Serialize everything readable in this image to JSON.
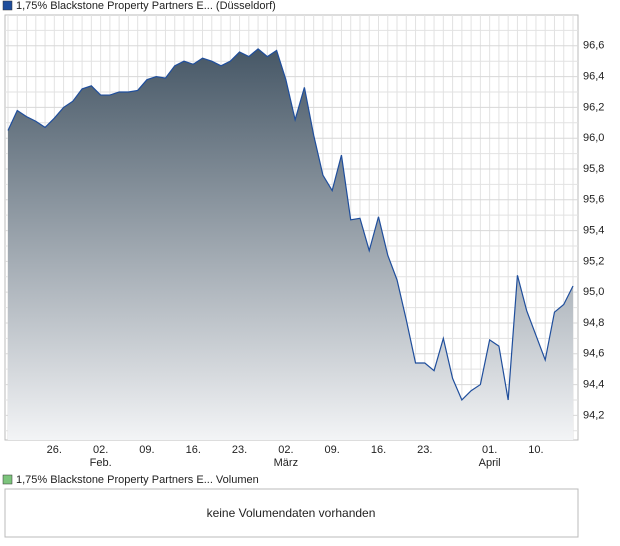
{
  "chart_data": {
    "type": "area",
    "categories": [
      null,
      null,
      null,
      null,
      null,
      "26.",
      null,
      null,
      null,
      null,
      "02.",
      null,
      null,
      null,
      null,
      "09.",
      null,
      null,
      null,
      null,
      "16.",
      null,
      null,
      null,
      null,
      "23.",
      null,
      null,
      null,
      null,
      "02.",
      null,
      null,
      null,
      null,
      "09.",
      null,
      null,
      null,
      null,
      "16.",
      null,
      null,
      null,
      null,
      "23.",
      null,
      null,
      null,
      null,
      null,
      null,
      "01.",
      null,
      null,
      null,
      null,
      "10.",
      null,
      null,
      null,
      null
    ],
    "month_labels": [
      {
        "value": 10,
        "label": "Feb."
      },
      {
        "value": 30,
        "label": "März"
      },
      {
        "value": 52,
        "label": "April"
      }
    ],
    "series": [
      {
        "name": "1,75% Blackstone Property Partners E... (Düsseldorf)",
        "color": "#1f4e9c",
        "values": [
          96.05,
          96.18,
          96.14,
          96.11,
          96.07,
          96.13,
          96.2,
          96.24,
          96.32,
          96.34,
          96.28,
          96.28,
          96.3,
          96.3,
          96.31,
          96.38,
          96.4,
          96.39,
          96.47,
          96.5,
          96.48,
          96.52,
          96.5,
          96.47,
          96.5,
          96.56,
          96.53,
          96.58,
          96.53,
          96.57,
          96.38,
          96.12,
          96.33,
          96.02,
          95.76,
          95.66,
          95.89,
          95.47,
          95.48,
          95.27,
          95.49,
          95.24,
          95.08,
          94.82,
          94.54,
          94.54,
          94.49,
          94.7,
          94.44,
          94.3,
          94.36,
          94.4,
          94.69,
          94.65,
          94.3,
          95.11,
          94.88,
          94.72,
          94.56,
          94.87,
          94.92,
          95.04
        ]
      }
    ],
    "ylim": [
      94.04,
      96.8
    ],
    "yticks": [
      {
        "value": 94.2,
        "label": "94,2"
      },
      {
        "value": 94.4,
        "label": "94,4"
      },
      {
        "value": 94.6,
        "label": "94,6"
      },
      {
        "value": 94.8,
        "label": "94,8"
      },
      {
        "value": 95.0,
        "label": "95,0"
      },
      {
        "value": 95.2,
        "label": "95,2"
      },
      {
        "value": 95.4,
        "label": "95,4"
      },
      {
        "value": 95.6,
        "label": "95,6"
      },
      {
        "value": 95.8,
        "label": "95,8"
      },
      {
        "value": 96.0,
        "label": "96,0"
      },
      {
        "value": 96.2,
        "label": "96,2"
      },
      {
        "value": 96.4,
        "label": "96,4"
      },
      {
        "value": 96.6,
        "label": "96,6"
      }
    ],
    "minor_yticks": [
      94.1,
      94.3,
      94.5,
      94.7,
      94.9,
      95.1,
      95.3,
      95.5,
      95.7,
      95.9,
      96.1,
      96.3,
      96.5,
      96.7
    ],
    "grid": true
  },
  "volume_panel": {
    "legend": "1,75% Blackstone Property Partners E... Volumen",
    "legend_color": "#7cc47c",
    "message": "keine Volumendaten vorhanden"
  }
}
